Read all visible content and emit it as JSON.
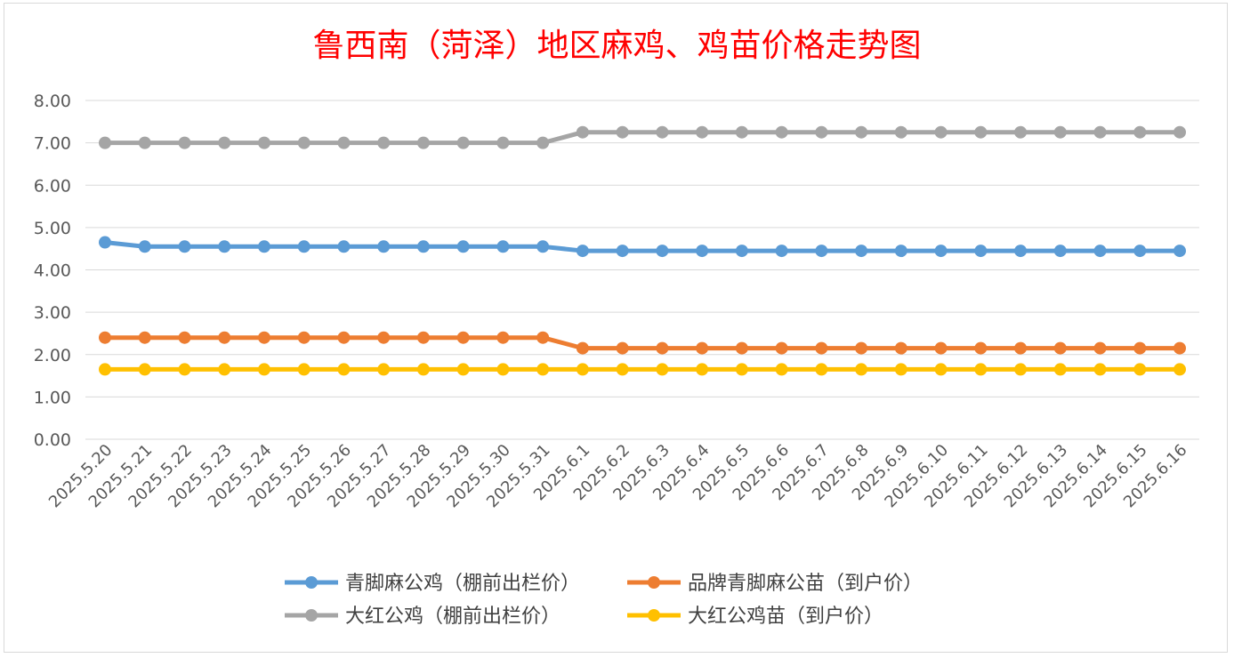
{
  "chart_data": {
    "type": "line",
    "title": "鲁西南（菏泽）地区麻鸡、鸡苗价格走势图",
    "xlabel": "",
    "ylabel": "",
    "ylim": [
      0,
      8
    ],
    "yticks": [
      "0.00",
      "1.00",
      "2.00",
      "3.00",
      "4.00",
      "5.00",
      "6.00",
      "7.00",
      "8.00"
    ],
    "grid": true,
    "legend_position": "bottom",
    "categories": [
      "2025.5.20",
      "2025.5.21",
      "2025.5.22",
      "2025.5.23",
      "2025.5.24",
      "2025.5.25",
      "2025.5.26",
      "2025.5.27",
      "2025.5.28",
      "2025.5.29",
      "2025.5.30",
      "2025.5.31",
      "2025.6.1",
      "2025.6.2",
      "2025.6.3",
      "2025.6.4",
      "2025.6.5",
      "2025.6.6",
      "2025.6.7",
      "2025.6.8",
      "2025.6.9",
      "2025.6.10",
      "2025.6.11",
      "2025.6.12",
      "2025.6.13",
      "2025.6.14",
      "2025.6.15",
      "2025.6.16"
    ],
    "series": [
      {
        "name": "青脚麻公鸡（棚前出栏价）",
        "color": "#5b9bd5",
        "values": [
          4.65,
          4.55,
          4.55,
          4.55,
          4.55,
          4.55,
          4.55,
          4.55,
          4.55,
          4.55,
          4.55,
          4.55,
          4.45,
          4.45,
          4.45,
          4.45,
          4.45,
          4.45,
          4.45,
          4.45,
          4.45,
          4.45,
          4.45,
          4.45,
          4.45,
          4.45,
          4.45,
          4.45
        ]
      },
      {
        "name": "品牌青脚麻公苗（到户价）",
        "color": "#ed7d31",
        "values": [
          2.4,
          2.4,
          2.4,
          2.4,
          2.4,
          2.4,
          2.4,
          2.4,
          2.4,
          2.4,
          2.4,
          2.4,
          2.15,
          2.15,
          2.15,
          2.15,
          2.15,
          2.15,
          2.15,
          2.15,
          2.15,
          2.15,
          2.15,
          2.15,
          2.15,
          2.15,
          2.15,
          2.15
        ]
      },
      {
        "name": "大红公鸡（棚前出栏价）",
        "color": "#a5a5a5",
        "values": [
          7.0,
          7.0,
          7.0,
          7.0,
          7.0,
          7.0,
          7.0,
          7.0,
          7.0,
          7.0,
          7.0,
          7.0,
          7.25,
          7.25,
          7.25,
          7.25,
          7.25,
          7.25,
          7.25,
          7.25,
          7.25,
          7.25,
          7.25,
          7.25,
          7.25,
          7.25,
          7.25,
          7.25
        ]
      },
      {
        "name": "大红公鸡苗（到户价）",
        "color": "#ffc000",
        "values": [
          1.65,
          1.65,
          1.65,
          1.65,
          1.65,
          1.65,
          1.65,
          1.65,
          1.65,
          1.65,
          1.65,
          1.65,
          1.65,
          1.65,
          1.65,
          1.65,
          1.65,
          1.65,
          1.65,
          1.65,
          1.65,
          1.65,
          1.65,
          1.65,
          1.65,
          1.65,
          1.65,
          1.65
        ]
      }
    ]
  }
}
